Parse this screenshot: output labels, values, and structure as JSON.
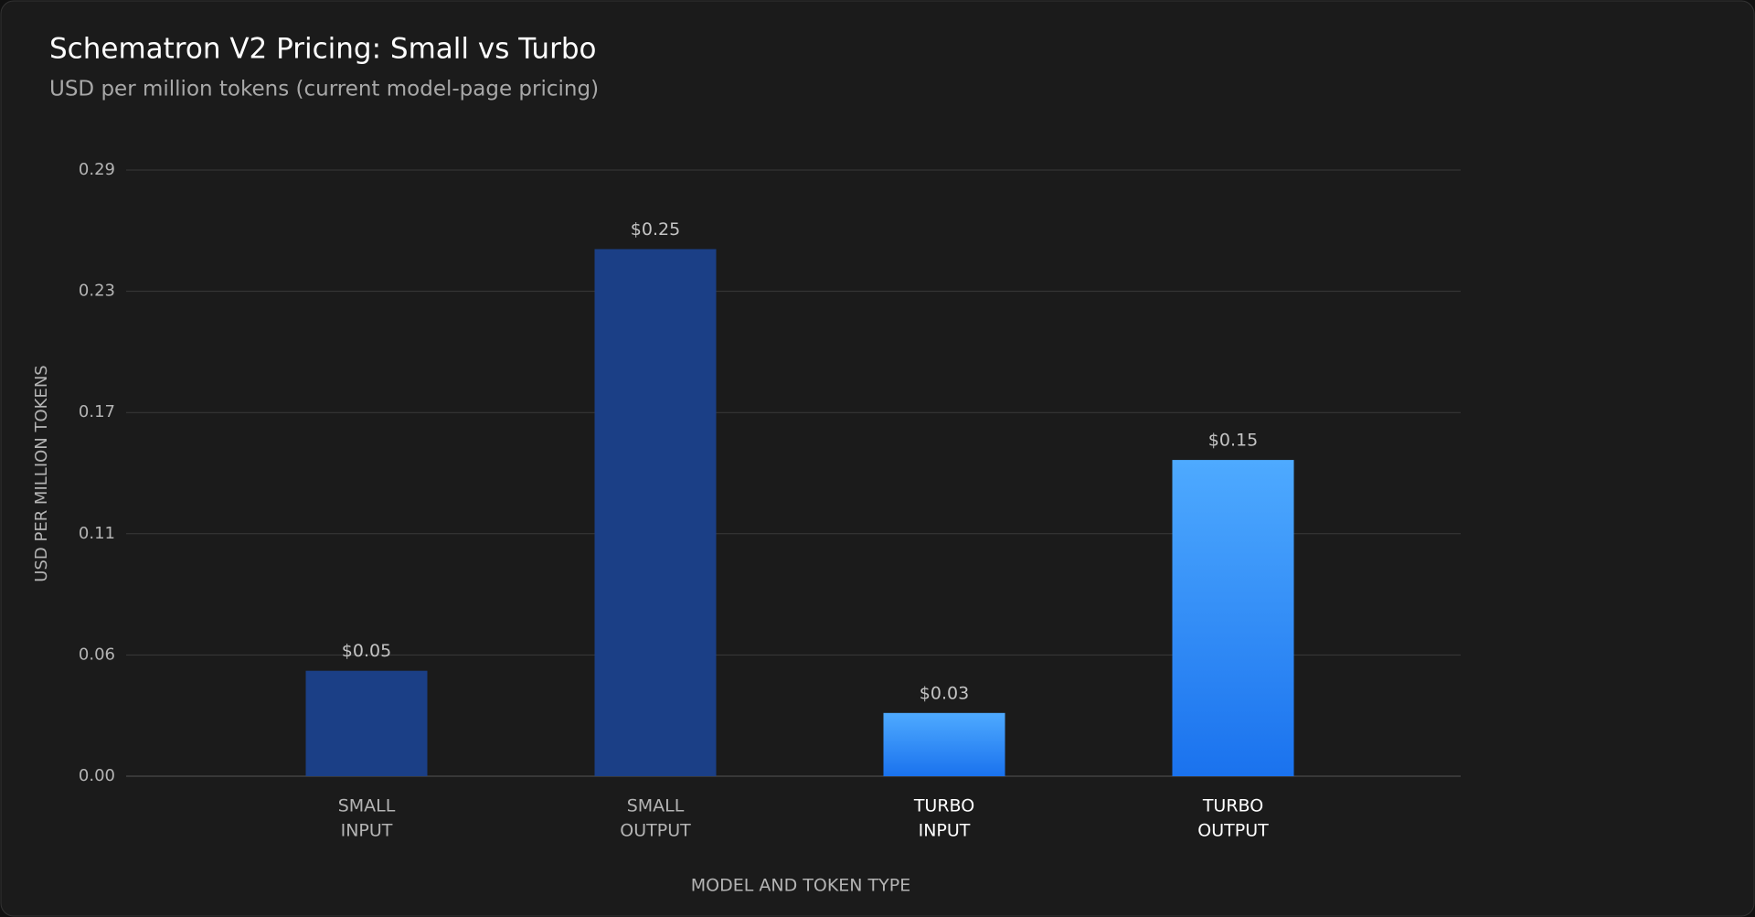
{
  "chart_data": {
    "type": "bar",
    "title": "Schematron V2 Pricing: Small vs Turbo",
    "subtitle": "USD per million tokens (current model-page pricing)",
    "x_label": "MODEL AND TOKEN TYPE",
    "y_label": "USD PER MILLION TOKENS",
    "categories": [
      [
        "SMALL",
        "INPUT"
      ],
      [
        "SMALL",
        "OUTPUT"
      ],
      [
        "TURBO",
        "INPUT"
      ],
      [
        "TURBO",
        "OUTPUT"
      ]
    ],
    "values": [
      0.05,
      0.25,
      0.03,
      0.15
    ],
    "value_labels": [
      "$0.05",
      "$0.25",
      "$0.03",
      "$0.15"
    ],
    "colors": [
      [
        "#1b3f86",
        "#1b3f86"
      ],
      [
        "#1b3f86",
        "#1b3f86"
      ],
      [
        "#4eaaff",
        "#1a72ee"
      ],
      [
        "#4eaaff",
        "#1a72ee"
      ]
    ],
    "label_colors": [
      "#b4b4b4",
      "#b4b4b4",
      "#ffffff",
      "#ffffff"
    ],
    "ylim": [
      0,
      0.2875
    ],
    "yticks": [
      {
        "value": 0,
        "label": "0.00"
      },
      {
        "value": 0.0575,
        "label": "0.06"
      },
      {
        "value": 0.115,
        "label": "0.11"
      },
      {
        "value": 0.1725,
        "label": "0.17"
      },
      0.23,
      {
        "value": 0.2875,
        "label": "0.29"
      }
    ],
    "grid": true
  }
}
